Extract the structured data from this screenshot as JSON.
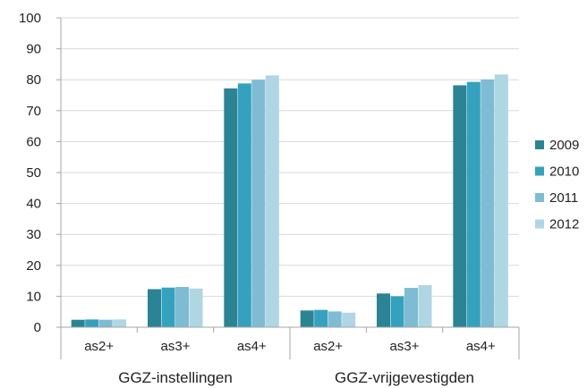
{
  "chart_data": {
    "type": "bar",
    "title": "",
    "xlabel": "",
    "ylabel": "",
    "ylim": [
      0,
      100
    ],
    "yticks": [
      0,
      10,
      20,
      30,
      40,
      50,
      60,
      70,
      80,
      90,
      100
    ],
    "grid": true,
    "legend_position": "right",
    "groups": [
      {
        "label": "GGZ-instellingen",
        "categories": [
          "as2+",
          "as3+",
          "as4+"
        ]
      },
      {
        "label": "GGZ-vrijgevestigden",
        "categories": [
          "as2+",
          "as3+",
          "as4+"
        ]
      }
    ],
    "series": [
      {
        "name": "2009",
        "color": "#2a8494",
        "values": [
          2.4,
          12.3,
          77.2,
          5.4,
          10.9,
          78.2
        ]
      },
      {
        "name": "2010",
        "color": "#34a2be",
        "values": [
          2.5,
          12.8,
          78.8,
          5.6,
          10.0,
          79.3
        ]
      },
      {
        "name": "2011",
        "color": "#7dbcd2",
        "values": [
          2.4,
          13.0,
          80.0,
          5.1,
          12.7,
          80.1
        ]
      },
      {
        "name": "2012",
        "color": "#afd6e3",
        "values": [
          2.5,
          12.5,
          81.4,
          4.7,
          13.6,
          81.7
        ]
      }
    ]
  }
}
